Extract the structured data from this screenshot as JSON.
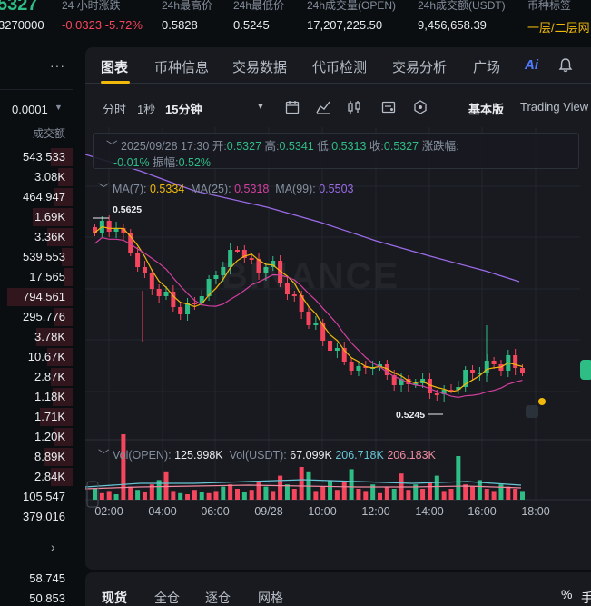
{
  "ticker": {
    "price": "5327",
    "sub": "3270000",
    "change_label": "24 小时涨跌",
    "change_value": "-0.0323 -5.72%",
    "high_label": "24h最高价",
    "high_value": "0.5828",
    "low_label": "24h最低价",
    "low_value": "0.5245",
    "vol_label": "24h成交量(OPEN)",
    "vol_value": "17,207,225.50",
    "turnover_label": "24h成交额(USDT)",
    "turnover_value": "9,456,658.39",
    "tag_label": "币种标签",
    "tag_value": "一层/二层网"
  },
  "book": {
    "menu_icon": "more-dots-icon",
    "precision": "0.0001",
    "header": "成交额",
    "rows": [
      {
        "value": "543.533",
        "side": "ask",
        "depth": 0.3
      },
      {
        "value": "3.08K",
        "side": "ask",
        "depth": 0.2
      },
      {
        "value": "464.947",
        "side": "ask",
        "depth": 0.25
      },
      {
        "value": "1.69K",
        "side": "ask",
        "depth": 0.55
      },
      {
        "value": "3.36K",
        "side": "ask",
        "depth": 0.35
      },
      {
        "value": "539.553",
        "side": "ask",
        "depth": 0.15
      },
      {
        "value": "17.565",
        "side": "ask",
        "depth": 0.12
      },
      {
        "value": "794.561",
        "side": "ask",
        "depth": 0.9
      },
      {
        "value": "295.776",
        "side": "ask",
        "depth": 0.25
      },
      {
        "value": "3.78K",
        "side": "ask",
        "depth": 0.5
      },
      {
        "value": "10.67K",
        "side": "ask",
        "depth": 0.35
      },
      {
        "value": "2.87K",
        "side": "ask",
        "depth": 0.3
      },
      {
        "value": "1.18K",
        "side": "ask",
        "depth": 0.28
      },
      {
        "value": "1.71K",
        "side": "ask",
        "depth": 0.45
      },
      {
        "value": "1.20K",
        "side": "ask",
        "depth": 0.25
      },
      {
        "value": "8.89K",
        "side": "ask",
        "depth": 0.4
      },
      {
        "value": "2.84K",
        "side": "ask",
        "depth": 0.3
      },
      {
        "value": "105.547",
        "side": "bid",
        "depth": 0.0
      },
      {
        "value": "379.016",
        "side": "bid",
        "depth": 0.0
      }
    ],
    "bottom_rows": [
      "58.745",
      "50.853"
    ]
  },
  "tabs": [
    "图表",
    "币种信息",
    "交易数据",
    "代币检测",
    "交易分析",
    "广场"
  ],
  "toolbar": {
    "intervals": [
      "分时",
      "1秒",
      "15分钟"
    ],
    "version_active": "基本版",
    "version_other": "Trading View"
  },
  "ohlc": {
    "date": "2025/09/28 17:30",
    "open_label": "开:",
    "open": "0.5327",
    "high_label": "高:",
    "high": "0.5341",
    "low_label": "低:",
    "low": "0.5313",
    "close_label": "收:",
    "close": "0.5327",
    "change_label": "涨跌幅:",
    "change": "-0.01%",
    "amp_label": "振幅:",
    "amp": "0.52%"
  },
  "ma": {
    "ma7_label": "MA(7):",
    "ma7": "0.5334",
    "ma25_label": "MA(25):",
    "ma25": "0.5318",
    "ma99_label": "MA(99):",
    "ma99": "0.5503"
  },
  "vol": {
    "open_label": "Vol(OPEN):",
    "open": "125.998K",
    "usdt_label": "Vol(USDT):",
    "usdt": "67.099K",
    "v2": "206.718K",
    "v3": "206.183K"
  },
  "watermark": "BINANCE",
  "chart_data": {
    "type": "candlestick",
    "x_ticks": [
      "02:00",
      "04:00",
      "06:00",
      "09/28",
      "10:00",
      "12:00",
      "14:00",
      "16:00",
      "18:00"
    ],
    "high_marker": "0.5625",
    "low_marker": "0.5245",
    "colors": {
      "up": "#2ebd85",
      "down": "#f6465d",
      "ma7": "#f0b90b",
      "ma25": "#d23f9e",
      "ma99": "#9b6be8"
    }
  },
  "footer_tabs": [
    "现货",
    "全仓",
    "逐仓",
    "网格"
  ],
  "footer_pct": "%",
  "footer_more": "手"
}
